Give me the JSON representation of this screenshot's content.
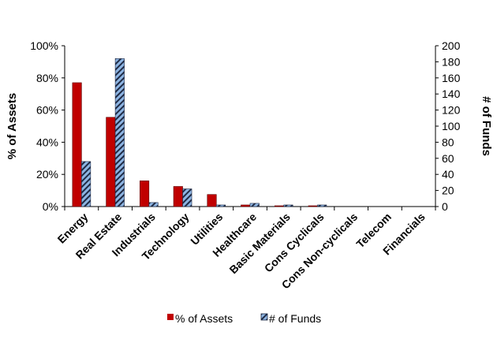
{
  "chart_data": {
    "type": "bar",
    "categories": [
      "Energy",
      "Real Estate",
      "Industrials",
      "Technology",
      "Utilities",
      "Healthcare",
      "Basic Materials",
      "Cons Cyclicals",
      "Cons Non-cyclicals",
      "Telecom",
      "Financials"
    ],
    "series": [
      {
        "name": "% of Assets",
        "axis": "left",
        "values": [
          77,
          55.5,
          16,
          12.5,
          7.5,
          1,
          0.5,
          0.5,
          0,
          0,
          0
        ],
        "color": "#c00000"
      },
      {
        "name": "# of Funds",
        "axis": "right",
        "values": [
          56,
          184,
          5,
          22,
          2,
          4,
          2,
          2,
          0,
          0,
          0
        ],
        "color": "#8db4e2",
        "pattern": "diagonal-stripes"
      }
    ],
    "ylabel": "% of Assets",
    "y2label": "# of Funds",
    "ylim": [
      0,
      100
    ],
    "y2lim": [
      0,
      200
    ],
    "yticks": [
      "0%",
      "20%",
      "40%",
      "60%",
      "80%",
      "100%"
    ],
    "y2ticks": [
      "0",
      "20",
      "40",
      "60",
      "80",
      "100",
      "120",
      "140",
      "160",
      "180",
      "200"
    ],
    "legend_position": "bottom",
    "grid": false
  }
}
